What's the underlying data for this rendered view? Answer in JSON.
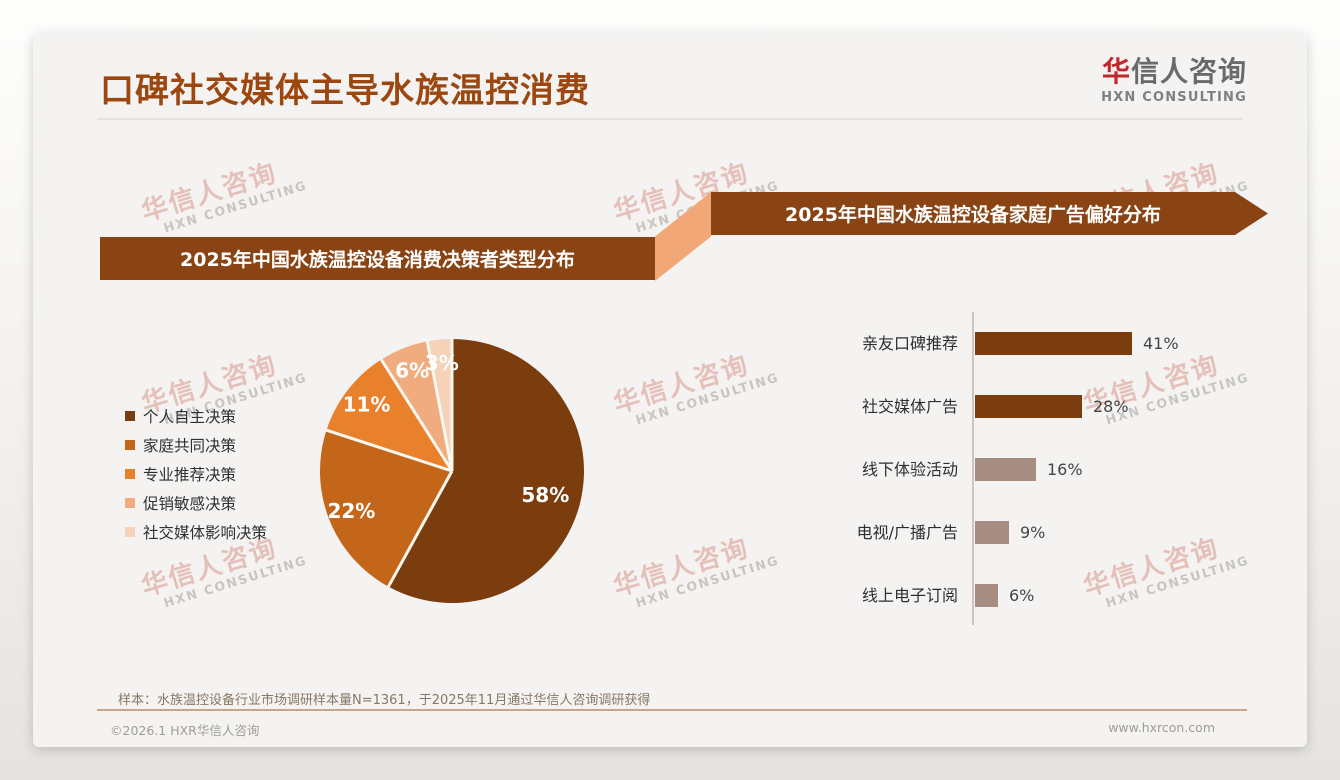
{
  "header": {
    "title": "口碑社交媒体主导水族温控消费",
    "logo_cn_accent": "华",
    "logo_cn_rest": "信人咨询",
    "logo_en": "HXN CONSULTING"
  },
  "watermark": {
    "cn": "华信人咨询",
    "en": "HXN CONSULTING"
  },
  "footnote": "样本：水族温控设备行业市场调研样本量N=1361，于2025年11月通过华信人咨询调研获得",
  "footer": {
    "left": "©2026.1 HXR华信人咨询",
    "right": "www.hxrcon.com"
  },
  "colors": {
    "title_text": "#9C4710",
    "banner_brown": "#8A4414",
    "connector_peach": "#F2A876",
    "logo_accent_red": "#C1272D",
    "bar_brown": "#7B3D0F",
    "bar_mauve": "#A78C82",
    "footer_rule_tan": "#C9A485",
    "card_bg": "#F4F3F1"
  },
  "chart_data": [
    {
      "type": "pie",
      "title": "2025年中国水族温控设备消费决策者类型分布",
      "categories": [
        "个人自主决策",
        "家庭共同决策",
        "专业推荐决策",
        "促销敏感决策",
        "社交媒体影响决策"
      ],
      "values": [
        58,
        22,
        11,
        6,
        3
      ],
      "labels": [
        "58%",
        "22%",
        "11%",
        "6%",
        "3%"
      ],
      "unit": "%",
      "colors": [
        "#7B3C0E",
        "#C4661A",
        "#E8802C",
        "#F0AC7E",
        "#F6D2B8"
      ],
      "start_angle_deg_from_north": 0,
      "direction": "clockwise",
      "legend_position": "left",
      "slice_separator_color": "#FAF6F0"
    },
    {
      "type": "bar",
      "title": "2025年中国水族温控设备家庭广告偏好分布",
      "orientation": "horizontal",
      "categories": [
        "亲友口碑推荐",
        "社交媒体广告",
        "线下体验活动",
        "电视/广播广告",
        "线上电子订阅"
      ],
      "values": [
        41,
        28,
        16,
        9,
        6
      ],
      "labels": [
        "41%",
        "28%",
        "16%",
        "9%",
        "6%"
      ],
      "unit": "%",
      "bar_colors": [
        "#7B3D0F",
        "#7B3D0F",
        "#A78C82",
        "#A78C82",
        "#A78C82"
      ],
      "xlim": [
        0,
        45
      ],
      "grid": false,
      "axis_line": "left"
    }
  ]
}
